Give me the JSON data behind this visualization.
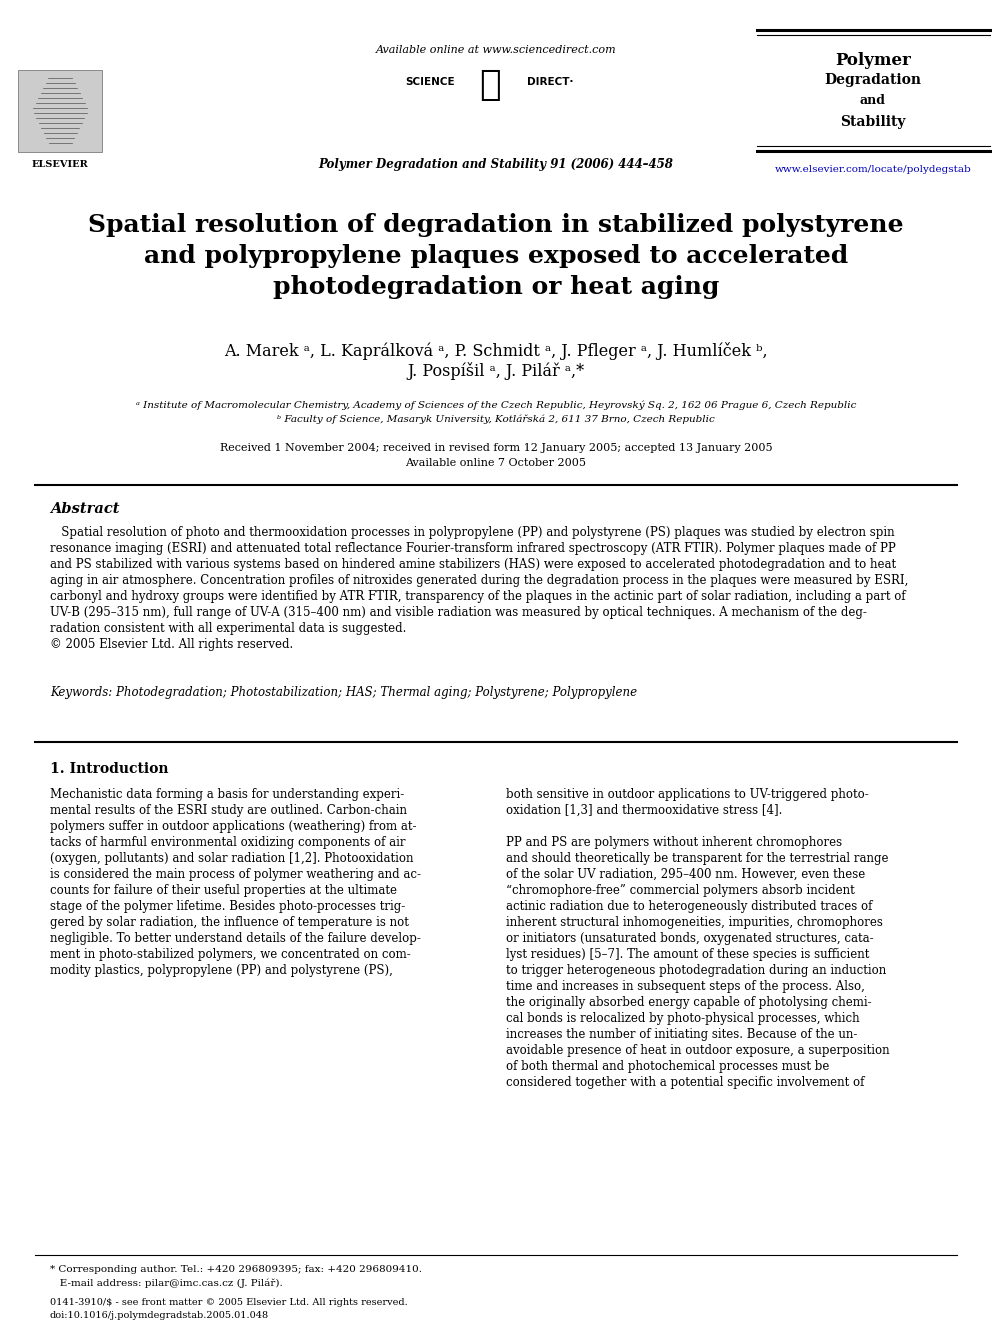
{
  "background_color": "#ffffff",
  "header": {
    "available_online": "Available online at www.sciencedirect.com",
    "journal_line": "Polymer Degradation and Stability 91 (2006) 444–458",
    "journal_name_lines": [
      "Polymer",
      "Degradation",
      "and",
      "Stability"
    ],
    "journal_url": "www.elsevier.com/locate/polydegstab"
  },
  "title": "Spatial resolution of degradation in stabilized polystyrene\nand polypropylene plaques exposed to accelerated\nphotodegradation or heat aging",
  "authors_line1": "A. Marek ᵃ, L. Kaprálková ᵃ, P. Schmidt ᵃ, J. Pfleger ᵃ, J. Humlíček ᵇ,",
  "authors_line2": "J. Pospíšil ᵃ, J. Pilář ᵃ,*",
  "affiliation_a": "ᵃ Institute of Macromolecular Chemistry, Academy of Sciences of the Czech Republic, Heyrovský Sq. 2, 162 06 Prague 6, Czech Republic",
  "affiliation_b": "ᵇ Faculty of Science, Masaryk University, Kotlářská 2, 611 37 Brno, Czech Republic",
  "received_line1": "Received 1 November 2004; received in revised form 12 January 2005; accepted 13 January 2005",
  "received_line2": "Available online 7 October 2005",
  "abstract_title": "Abstract",
  "abstract_body": "   Spatial resolution of photo and thermooxidation processes in polypropylene (PP) and polystyrene (PS) plaques was studied by electron spin\nresonance imaging (ESRI) and attenuated total reflectance Fourier-transform infrared spectroscopy (ATR FTIR). Polymer plaques made of PP\nand PS stabilized with various systems based on hindered amine stabilizers (HAS) were exposed to accelerated photodegradation and to heat\naging in air atmosphere. Concentration profiles of nitroxides generated during the degradation process in the plaques were measured by ESRI,\ncarbonyl and hydroxy groups were identified by ATR FTIR, transparency of the plaques in the actinic part of solar radiation, including a part of\nUV-B (295–315 nm), full range of UV-A (315–400 nm) and visible radiation was measured by optical techniques. A mechanism of the deg-\nradation consistent with all experimental data is suggested.\n© 2005 Elsevier Ltd. All rights reserved.",
  "keywords": "Keywords: Photodegradation; Photostabilization; HAS; Thermal aging; Polystyrene; Polypropylene",
  "section1_title": "1. Introduction",
  "col1_text": "Mechanistic data forming a basis for understanding experi-\nmental results of the ESRI study are outlined. Carbon-chain\npolymers suffer in outdoor applications (weathering) from at-\ntacks of harmful environmental oxidizing components of air\n(oxygen, pollutants) and solar radiation [1,2]. Photooxidation\nis considered the main process of polymer weathering and ac-\ncounts for failure of their useful properties at the ultimate\nstage of the polymer lifetime. Besides photo-processes trig-\ngered by solar radiation, the influence of temperature is not\nnegligible. To better understand details of the failure develop-\nment in photo-stabilized polymers, we concentrated on com-\nmodity plastics, polypropylene (PP) and polystyrene (PS),",
  "col2_text": "both sensitive in outdoor applications to UV-triggered photo-\noxidation [1,3] and thermooxidative stress [4].\n\nPP and PS are polymers without inherent chromophores\nand should theoretically be transparent for the terrestrial range\nof the solar UV radiation, 295–400 nm. However, even these\n“chromophore-free” commercial polymers absorb incident\nactinic radiation due to heterogeneously distributed traces of\ninherent structural inhomogeneities, impurities, chromophores\nor initiators (unsaturated bonds, oxygenated structures, cata-\nlyst residues) [5–7]. The amount of these species is sufficient\nto trigger heterogeneous photodegradation during an induction\ntime and increases in subsequent steps of the process. Also,\nthe originally absorbed energy capable of photolysing chemi-\ncal bonds is relocalized by photo-physical processes, which\nincreases the number of initiating sites. Because of the un-\navoidable presence of heat in outdoor exposure, a superposition\nof both thermal and photochemical processes must be\nconsidered together with a potential specific involvement of",
  "footnote_line1": "* Corresponding author. Tel.: +420 296809395; fax: +420 296809410.",
  "footnote_line2": "   E-mail address: pilar@imc.cas.cz (J. Pilář).",
  "footer_line1": "0141-3910/$ - see front matter © 2005 Elsevier Ltd. All rights reserved.",
  "footer_line2": "doi:10.1016/j.polymdegradstab.2005.01.048",
  "journal_name_fontsizes": [
    12,
    10,
    9,
    10
  ]
}
